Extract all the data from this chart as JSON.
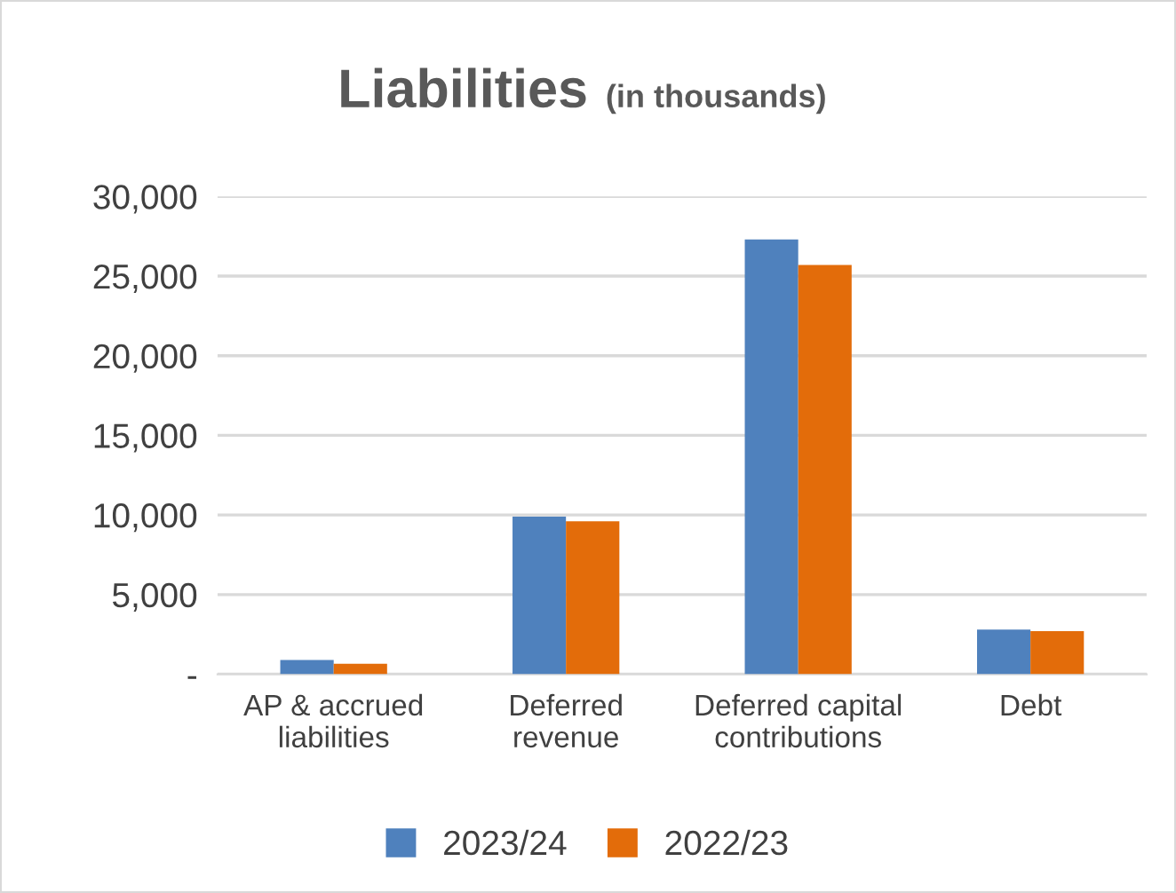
{
  "chart_data": {
    "type": "bar",
    "title": "Liabilities",
    "subtitle": "(in thousands)",
    "categories": [
      "AP & accrued\nliabilities",
      "Deferred\nrevenue",
      "Deferred capital\ncontributions",
      "Debt"
    ],
    "series": [
      {
        "name": "2023/24",
        "color": "#4f81bd",
        "values": [
          900,
          9900,
          27300,
          2800
        ]
      },
      {
        "name": "2022/23",
        "color": "#e36c0a",
        "values": [
          650,
          9600,
          25700,
          2700
        ]
      }
    ],
    "ylim": [
      0,
      30000
    ],
    "yticks": [
      {
        "value": 0,
        "label": "-"
      },
      {
        "value": 5000,
        "label": "5,000"
      },
      {
        "value": 10000,
        "label": "10,000"
      },
      {
        "value": 15000,
        "label": "15,000"
      },
      {
        "value": 20000,
        "label": "20,000"
      },
      {
        "value": 25000,
        "label": "25,000"
      },
      {
        "value": 30000,
        "label": "30,000"
      }
    ],
    "grid": "y",
    "legend": "bottom"
  }
}
